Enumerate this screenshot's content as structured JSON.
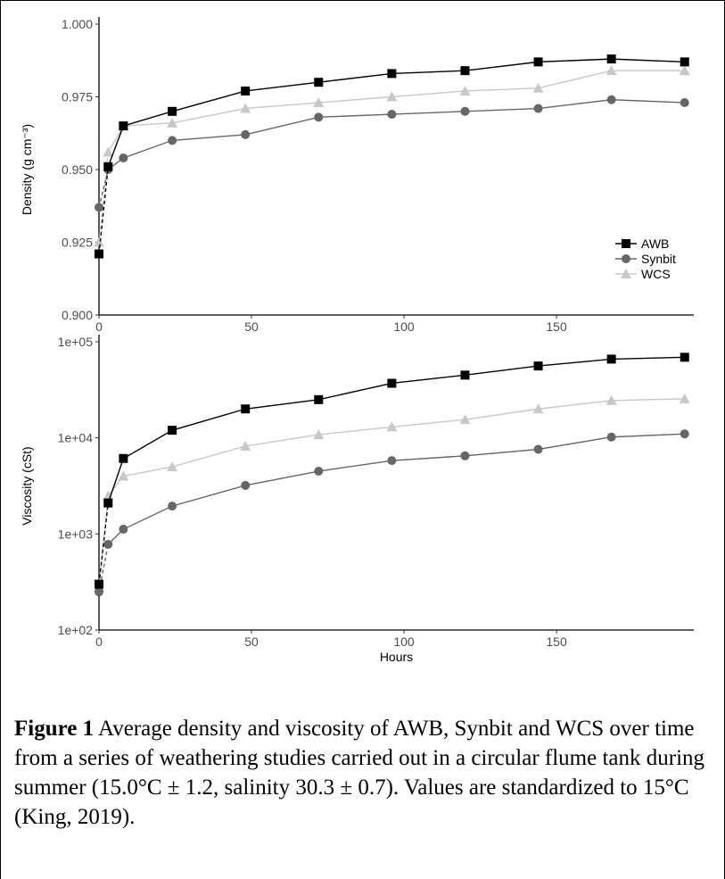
{
  "caption": {
    "label": "Figure 1",
    "text": " Average density and viscosity of AWB, Synbit and WCS over time from a series of weathering studies carried out in a circular flume tank during summer (15.0°C ± 1.2, salinity 30.3 ± 0.7). Values are standardized to 15°C (King, 2019)."
  },
  "colors": {
    "AWB": "#000000",
    "Synbit": "#666666",
    "WCS": "#c8c8c8"
  },
  "chart_data": [
    {
      "type": "line",
      "ylabel": "Density (g cm⁻³)",
      "xlabel": "",
      "xlim": [
        0,
        195
      ],
      "ylim": [
        0.9,
        1.0
      ],
      "x_ticks": [
        "0",
        "50",
        "100",
        "150"
      ],
      "y_ticks": [
        "0.900",
        "0.925",
        "0.950",
        "0.975",
        "1.000"
      ],
      "legend": {
        "position": "right",
        "entries": [
          "AWB",
          "Synbit",
          "WCS"
        ]
      },
      "series": [
        {
          "name": "AWB",
          "marker": "square",
          "x": [
            0,
            3,
            8,
            24,
            48,
            72,
            96,
            120,
            144,
            168,
            192
          ],
          "y": [
            0.921,
            0.951,
            0.965,
            0.97,
            0.977,
            0.98,
            0.983,
            0.984,
            0.987,
            0.988,
            0.987
          ]
        },
        {
          "name": "Synbit",
          "marker": "circle",
          "x": [
            0,
            3,
            8,
            24,
            48,
            72,
            96,
            120,
            144,
            168,
            192
          ],
          "y": [
            0.937,
            0.95,
            0.954,
            0.96,
            0.962,
            0.968,
            0.969,
            0.97,
            0.971,
            0.974,
            0.973
          ]
        },
        {
          "name": "WCS",
          "marker": "triangle",
          "x": [
            0,
            3,
            8,
            24,
            48,
            72,
            96,
            120,
            144,
            168,
            192
          ],
          "y": [
            0.925,
            0.956,
            0.965,
            0.966,
            0.971,
            0.973,
            0.975,
            0.977,
            0.978,
            0.984,
            0.984
          ]
        }
      ]
    },
    {
      "type": "line",
      "ylabel": "Viscosity (cSt)",
      "xlabel": "Hours",
      "xlim": [
        0,
        195
      ],
      "ylim": [
        100,
        100000
      ],
      "yscale": "log",
      "x_ticks": [
        "0",
        "50",
        "100",
        "150"
      ],
      "y_ticks": [
        "1e+02",
        "1e+03",
        "1e+04",
        "1e+05"
      ],
      "series": [
        {
          "name": "AWB",
          "marker": "square",
          "x": [
            0,
            3,
            8,
            24,
            48,
            72,
            96,
            120,
            144,
            168,
            192
          ],
          "y": [
            300,
            2100,
            6100,
            12000,
            20000,
            25000,
            37000,
            45000,
            56000,
            66000,
            69000
          ]
        },
        {
          "name": "Synbit",
          "marker": "circle",
          "x": [
            0,
            3,
            8,
            24,
            48,
            72,
            96,
            120,
            144,
            168,
            192
          ],
          "y": [
            250,
            780,
            1120,
            1950,
            3200,
            4500,
            5800,
            6500,
            7600,
            10200,
            11000
          ]
        },
        {
          "name": "WCS",
          "marker": "triangle",
          "x": [
            0,
            3,
            8,
            24,
            48,
            72,
            96,
            120,
            144,
            168,
            192
          ],
          "y": [
            280,
            2500,
            4000,
            5000,
            8200,
            10800,
            13000,
            15500,
            20000,
            24500,
            25500
          ]
        }
      ]
    }
  ]
}
